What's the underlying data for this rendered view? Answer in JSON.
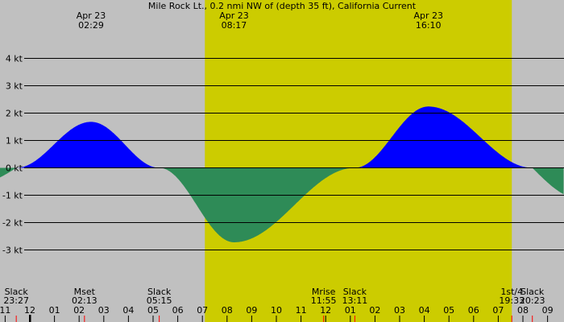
{
  "chart_data": {
    "type": "area",
    "title": "Mile Rock Lt., 0.2 nmi NW of (depth 35 ft), California Current",
    "y_unit": "kt",
    "y_ticks": [
      {
        "value": 4,
        "label": "4 kt"
      },
      {
        "value": 3,
        "label": "3 kt"
      },
      {
        "value": 2,
        "label": "2 kt"
      },
      {
        "value": 1,
        "label": "1 kt"
      },
      {
        "value": 0,
        "label": "0 kt"
      },
      {
        "value": -1,
        "label": "-1 kt"
      },
      {
        "value": -2,
        "label": "-2 kt"
      },
      {
        "value": -3,
        "label": "-3 kt"
      }
    ],
    "x_range_hours": [
      -1.0,
      33.0
    ],
    "y_range": [
      -4.0,
      4.6
    ],
    "hour_ticks": [
      "11",
      "12",
      "01",
      "02",
      "03",
      "04",
      "05",
      "06",
      "07",
      "08",
      "09",
      "10",
      "11",
      "12",
      "01",
      "02",
      "03",
      "04",
      "05",
      "06",
      "07",
      "08",
      "09"
    ],
    "daylight_hours": [
      7.1,
      19.55
    ],
    "colors": {
      "background": "#c0c0c0",
      "daylight": "#cccc00",
      "flood": "#0000ff",
      "ebb": "#2e8b57",
      "grid": "#000000"
    },
    "extremes": [
      {
        "date": "Apr 23",
        "time": "02:29",
        "hour": 2.483,
        "value": 1.68
      },
      {
        "date": "Apr 23",
        "time": "08:17",
        "hour": 8.283,
        "value": -2.72
      },
      {
        "date": "Apr 23",
        "time": "16:10",
        "hour": 16.167,
        "value": 2.24
      }
    ],
    "slacks": [
      {
        "hour": -0.55,
        "value": 0
      },
      {
        "hour": 5.25,
        "value": 0
      },
      {
        "hour": 13.183,
        "value": 0
      },
      {
        "hour": 20.383,
        "value": 0
      }
    ],
    "events": [
      {
        "name": "Slack",
        "time": "23:27",
        "hour": -0.55
      },
      {
        "name": "Mset",
        "time": "02:13",
        "hour": 2.217
      },
      {
        "name": "Slack",
        "time": "05:15",
        "hour": 5.25
      },
      {
        "name": "Mrise",
        "time": "11:55",
        "hour": 11.917
      },
      {
        "name": "Slack",
        "time": "13:11",
        "hour": 13.183
      },
      {
        "name": "1st/4",
        "time": "19:33",
        "hour": 19.55
      },
      {
        "name": "Slack",
        "time": "20:23",
        "hour": 20.383
      }
    ],
    "red_markers_hours": [
      -0.55,
      2.217,
      5.25,
      11.917,
      13.183,
      19.55,
      20.383
    ],
    "black_marker_hours": [
      0.0
    ],
    "start_value": -0.55,
    "end_value": -1.15
  }
}
